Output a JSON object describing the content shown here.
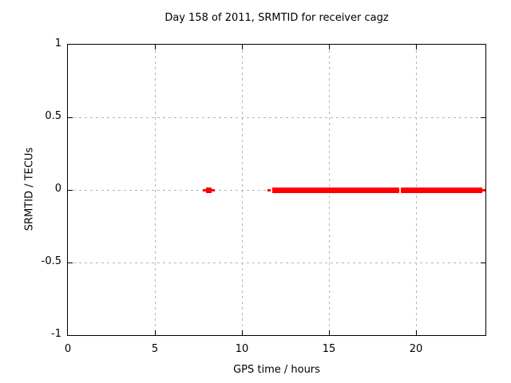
{
  "title": "Day 158 of 2011, SRMTID for receiver cagz",
  "chart_data": {
    "type": "scatter",
    "title": "Day 158 of 2011, SRMTID for receiver cagz",
    "xlabel": "GPS time / hours",
    "ylabel": "SRMTID / TECUs",
    "xlim": [
      0,
      24
    ],
    "ylim": [
      -1,
      1
    ],
    "grid": true,
    "legend": "none",
    "xticks": [
      {
        "value": 0,
        "label": "0"
      },
      {
        "value": 5,
        "label": "5"
      },
      {
        "value": 10,
        "label": "10"
      },
      {
        "value": 15,
        "label": "15"
      },
      {
        "value": 20,
        "label": "20"
      }
    ],
    "yticks": [
      {
        "value": 1,
        "label": "1"
      },
      {
        "value": 0.5,
        "label": "0.5"
      },
      {
        "value": 0,
        "label": "0"
      },
      {
        "value": -0.5,
        "label": "-0.5"
      },
      {
        "value": -1,
        "label": "-1"
      }
    ],
    "series": [
      {
        "name": "SRMTID",
        "marker": "filled-square",
        "color": "#ff0000",
        "y_value": 0,
        "segments": [
          {
            "x_start": 7.75,
            "x_end": 8.45,
            "size": "thin"
          },
          {
            "x_start": 7.93,
            "x_end": 8.27,
            "size": "thick"
          },
          {
            "x_start": 11.45,
            "x_end": 11.62,
            "size": "thin"
          },
          {
            "x_start": 11.73,
            "x_end": 19.03,
            "size": "thick"
          },
          {
            "x_start": 19.13,
            "x_end": 23.82,
            "size": "thick"
          },
          {
            "x_start": 23.82,
            "x_end": 24.0,
            "size": "thin"
          }
        ]
      }
    ],
    "colors": {
      "marker": "#ff0000",
      "grid": "#b4b4b4",
      "axis": "#000000",
      "background": "#ffffff"
    }
  }
}
